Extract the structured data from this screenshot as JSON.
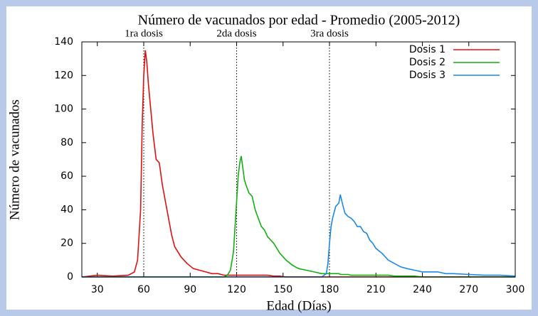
{
  "chart_data": {
    "type": "line",
    "title": "Número de vacunados por edad - Promedio (2005-2012)",
    "xlabel": "Edad (Días)",
    "ylabel": "Número de vacunados",
    "xlim": [
      20,
      300
    ],
    "ylim": [
      0,
      140
    ],
    "xticks": [
      30,
      60,
      90,
      120,
      150,
      180,
      210,
      240,
      270,
      300
    ],
    "yticks": [
      0,
      20,
      40,
      60,
      80,
      100,
      120,
      140
    ],
    "grid": false,
    "legend": "upper right",
    "vlines": [
      {
        "x": 60,
        "label": "1ra dosis"
      },
      {
        "x": 120,
        "label": "2da dosis"
      },
      {
        "x": 180,
        "label": "3ra dosis"
      }
    ],
    "x": [
      20,
      30,
      40,
      50,
      54,
      56,
      58,
      59,
      60,
      61,
      62,
      63,
      64,
      66,
      68,
      70,
      72,
      74,
      76,
      78,
      80,
      84,
      88,
      92,
      96,
      100,
      104,
      108,
      112,
      114,
      116,
      118,
      119,
      120,
      121,
      122,
      123,
      124,
      125,
      126,
      128,
      130,
      132,
      134,
      136,
      138,
      140,
      144,
      148,
      152,
      156,
      160,
      165,
      170,
      175,
      178,
      179,
      180,
      181,
      182,
      184,
      186,
      187,
      188,
      190,
      192,
      194,
      196,
      198,
      200,
      202,
      204,
      206,
      208,
      210,
      214,
      218,
      222,
      226,
      230,
      235,
      240,
      245,
      250,
      255,
      260,
      270,
      280,
      290,
      300
    ],
    "series": [
      {
        "name": "Dosis 1",
        "color": "#e01010",
        "values": [
          0,
          1,
          0.5,
          1,
          3,
          10,
          40,
          90,
          120,
          135,
          128,
          115,
          105,
          85,
          70,
          68,
          55,
          45,
          35,
          25,
          18,
          12,
          8,
          5,
          4,
          3,
          2,
          2,
          1,
          1,
          1,
          1,
          1,
          1,
          1,
          1,
          1,
          1,
          1,
          1,
          1,
          1,
          1,
          1,
          1,
          1,
          1,
          0.5,
          0.5,
          0,
          0,
          0,
          0,
          0,
          0,
          0,
          0,
          0,
          0,
          0,
          0,
          0,
          0,
          0,
          0,
          0,
          0,
          0,
          0,
          0,
          0,
          0,
          0,
          0,
          0,
          0,
          0,
          0,
          0,
          0,
          0,
          0,
          0,
          0,
          0,
          0,
          0,
          0,
          0,
          0
        ]
      },
      {
        "name": "Dosis 2",
        "color": "#10b010",
        "values": [
          0,
          0,
          0,
          0,
          0,
          0,
          0,
          0,
          0,
          0,
          0,
          0,
          0,
          0,
          0,
          0,
          0,
          0,
          0,
          0,
          0,
          0,
          0,
          0,
          0,
          0,
          0,
          0,
          0,
          1,
          4,
          15,
          30,
          45,
          60,
          68,
          72,
          65,
          58,
          55,
          50,
          48,
          40,
          35,
          30,
          28,
          24,
          20,
          14,
          10,
          7,
          5,
          4,
          3,
          2,
          2,
          2,
          2,
          2,
          2,
          2,
          2,
          1.5,
          1.5,
          1.5,
          1.5,
          1,
          1,
          1,
          1,
          1,
          1,
          1,
          1,
          1,
          1,
          1,
          0.5,
          0.5,
          0.5,
          0.5,
          0,
          0,
          0,
          0,
          0,
          0,
          0,
          0,
          0
        ]
      },
      {
        "name": "Dosis 3",
        "color": "#1a88e8",
        "values": [
          0,
          0,
          0,
          0,
          0,
          0,
          0,
          0,
          0,
          0,
          0,
          0,
          0,
          0,
          0,
          0,
          0,
          0,
          0,
          0,
          0,
          0,
          0,
          0,
          0,
          0,
          0,
          0,
          0,
          0,
          0,
          0,
          0,
          0,
          0,
          0,
          0,
          0,
          0,
          0,
          0,
          0,
          0,
          0,
          0,
          0,
          0,
          0,
          0,
          0,
          0,
          0,
          0,
          0,
          0,
          2,
          8,
          20,
          30,
          35,
          42,
          44,
          49,
          45,
          38,
          36,
          35,
          33,
          30,
          30,
          27,
          26,
          22,
          20,
          17,
          14,
          10,
          8,
          6,
          5,
          4,
          3,
          3,
          3,
          2,
          2,
          1.5,
          1,
          1,
          0.5
        ]
      }
    ]
  }
}
